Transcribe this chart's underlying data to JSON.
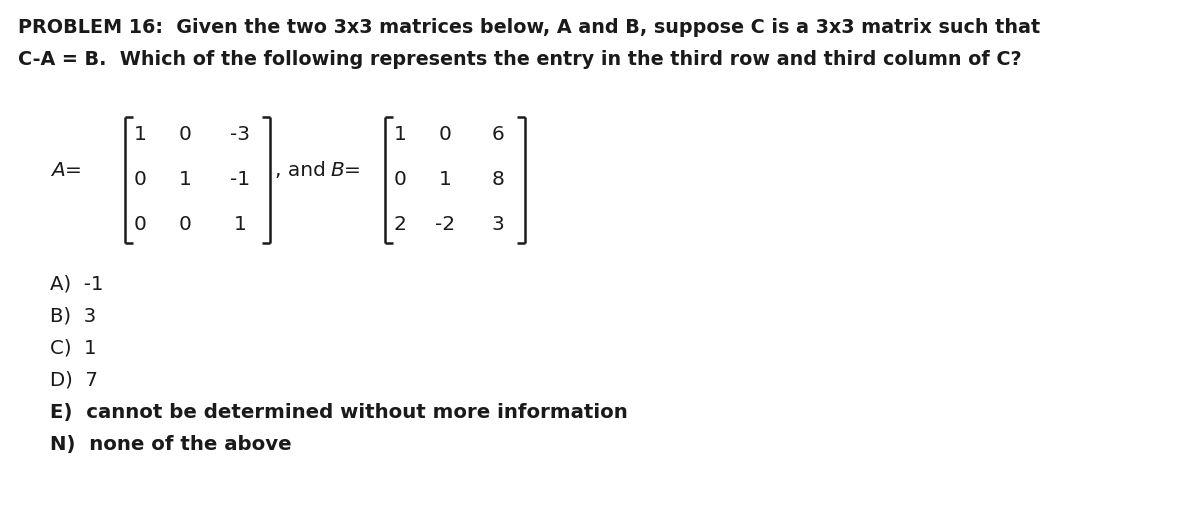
{
  "title_line1": "PROBLEM 16:  Given the two 3x3 matrices below, A and B, suppose C is a 3x3 matrix such that",
  "title_line2": "C-A = B.  Which of the following represents the entry in the third row and third column of C?",
  "matrix_A": [
    [
      "1",
      "0",
      "-3"
    ],
    [
      "0",
      "1",
      "-1"
    ],
    [
      "0",
      "0",
      "1"
    ]
  ],
  "matrix_B": [
    [
      "1",
      "0",
      "6"
    ],
    [
      "0",
      "1",
      "8"
    ],
    [
      "2",
      "-2",
      "3"
    ]
  ],
  "choices": [
    "A)  -1",
    "B)  3",
    "C)  1",
    "D)  7",
    "E)  cannot be determined without more information",
    "N)  none of the above"
  ],
  "bg_color": "#ffffff",
  "text_color": "#1a1a1a",
  "title_fontsize": 13.8,
  "matrix_label_fontsize": 14.5,
  "matrix_fontsize": 14.5,
  "choices_fontsize": 14.2,
  "fig_width": 12.0,
  "fig_height": 5.14,
  "dpi": 100
}
